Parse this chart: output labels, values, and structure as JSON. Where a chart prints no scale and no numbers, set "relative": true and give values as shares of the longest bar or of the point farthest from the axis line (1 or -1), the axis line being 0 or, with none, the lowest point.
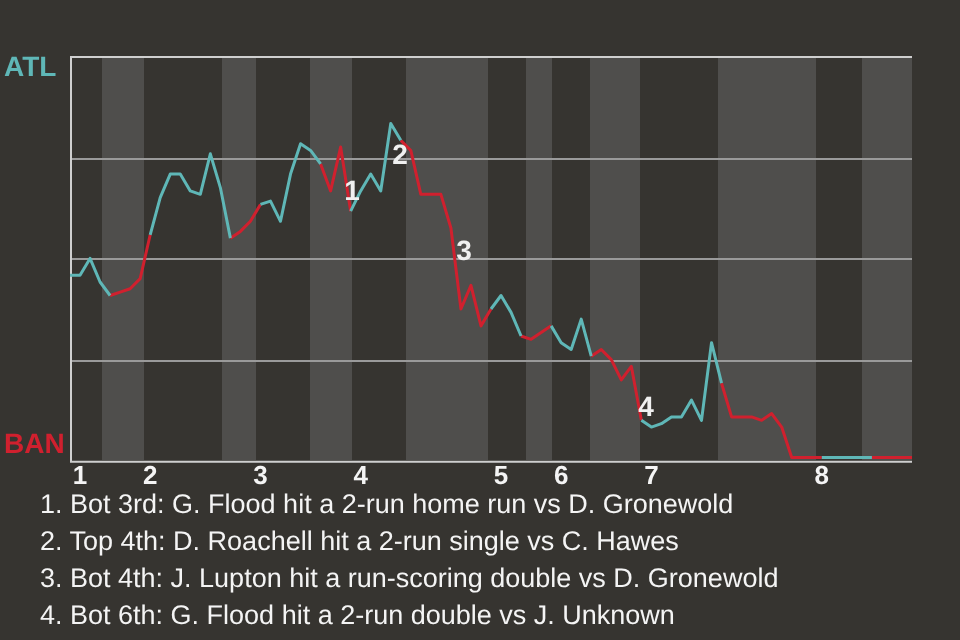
{
  "chart_data": {
    "type": "line",
    "relative": true,
    "grid": true,
    "categories": [
      null,
      "1",
      null,
      null,
      null,
      null,
      null,
      null,
      "2",
      null,
      null,
      null,
      null,
      null,
      null,
      null,
      null,
      null,
      null,
      "3",
      null,
      null,
      null,
      null,
      null,
      null,
      null,
      null,
      null,
      "4",
      null,
      null,
      null,
      null,
      null,
      null,
      null,
      null,
      null,
      null,
      null,
      null,
      null,
      "5",
      null,
      null,
      null,
      null,
      null,
      "6",
      null,
      null,
      null,
      null,
      null,
      null,
      null,
      null,
      "7",
      null,
      null,
      null,
      null,
      null,
      null,
      null,
      null,
      null,
      null,
      null,
      null,
      null,
      null,
      null,
      null,
      "8",
      null,
      null,
      null,
      null,
      null,
      null,
      null,
      null,
      null
    ],
    "series": [
      {
        "color": "#5fb7b7",
        "values": [
          0.55,
          0.55,
          0.6,
          0.53,
          0.49,
          null,
          null,
          null,
          0.67,
          0.78,
          0.85,
          0.85,
          0.8,
          0.79,
          0.91,
          0.81,
          0.66,
          null,
          null,
          0.76,
          0.77,
          0.71,
          0.85,
          0.94,
          0.92,
          0.88,
          null,
          null,
          0.74,
          0.8,
          0.85,
          0.8,
          1.0,
          0.95,
          null,
          null,
          null,
          null,
          null,
          null,
          null,
          null,
          0.45,
          0.49,
          0.44,
          0.37,
          null,
          null,
          0.4,
          0.35,
          0.33,
          0.42,
          0.31,
          null,
          null,
          null,
          null,
          0.12,
          0.1,
          0.11,
          0.13,
          0.13,
          0.18,
          0.12,
          0.35,
          0.23,
          null,
          null,
          null,
          null,
          null,
          null,
          null,
          null,
          null,
          0.01,
          0.01,
          0.01,
          0.01,
          0.01,
          0.01,
          null,
          null,
          null,
          null
        ]
      },
      {
        "color": "#d0202e",
        "values": [
          null,
          null,
          null,
          null,
          0.49,
          0.5,
          0.51,
          0.54,
          0.67,
          null,
          null,
          null,
          null,
          null,
          null,
          null,
          0.66,
          0.68,
          0.71,
          0.76,
          null,
          null,
          null,
          null,
          null,
          0.88,
          0.8,
          0.93,
          0.74,
          null,
          null,
          null,
          null,
          0.95,
          0.92,
          0.79,
          0.79,
          0.79,
          0.69,
          0.45,
          0.52,
          0.4,
          0.45,
          null,
          null,
          0.37,
          0.36,
          0.38,
          0.4,
          null,
          null,
          null,
          0.31,
          0.33,
          0.3,
          0.24,
          0.28,
          0.12,
          null,
          null,
          null,
          null,
          null,
          null,
          null,
          0.23,
          0.13,
          0.13,
          0.13,
          0.12,
          0.14,
          0.1,
          0.01,
          0.01,
          0.01,
          0.01,
          null,
          null,
          null,
          null,
          0.01,
          0.01,
          0.01,
          0.01,
          0.01
        ]
      }
    ],
    "annotations": [
      "ATL",
      "BAN",
      "1",
      "2",
      "3",
      "4",
      "1. Bot 3rd: G. Flood hit a 2-run home run vs D. Gronewold",
      "2. Top 4th: D. Roachell hit a 2-run single vs C. Hawes",
      "3. Bot 4th: J. Lupton hit a run-scoring double vs D. Gronewold",
      "4. Bot 6th: G. Flood hit a 2-run double vs J. Unknown"
    ]
  }
}
